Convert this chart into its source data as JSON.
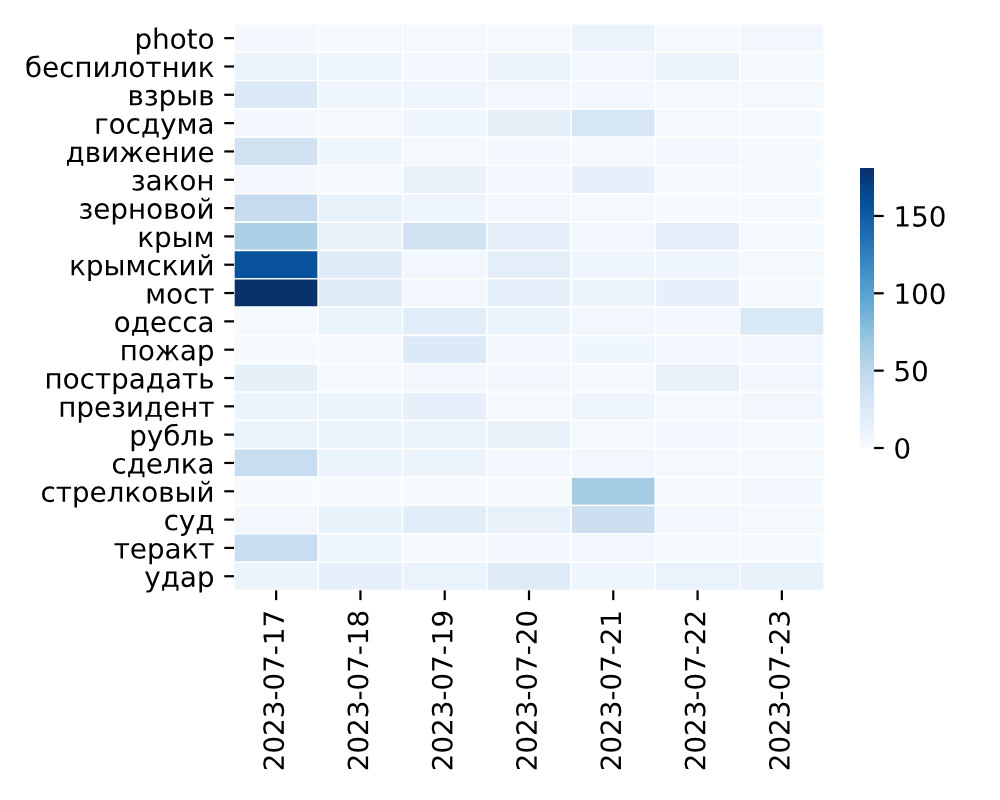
{
  "chart_data": {
    "type": "heatmap",
    "categories": [
      "2023-07-17",
      "2023-07-18",
      "2023-07-19",
      "2023-07-20",
      "2023-07-21",
      "2023-07-22",
      "2023-07-23"
    ],
    "y_categories": [
      "photo",
      "беспилотник",
      "взрыв",
      "госдума",
      "движение",
      "закон",
      "зерновой",
      "крым",
      "крымский",
      "мост",
      "одесса",
      "пожар",
      "пострадать",
      "президент",
      "рубль",
      "сделка",
      "стрелковый",
      "суд",
      "теракт",
      "удар"
    ],
    "cells": [
      [
        4,
        3,
        3,
        3,
        12,
        3,
        5
      ],
      [
        10,
        8,
        4,
        12,
        6,
        12,
        3
      ],
      [
        25,
        8,
        9,
        5,
        4,
        3,
        3
      ],
      [
        4,
        3,
        7,
        16,
        30,
        3,
        2
      ],
      [
        35,
        7,
        3,
        4,
        2,
        5,
        2
      ],
      [
        4,
        3,
        13,
        5,
        15,
        3,
        2
      ],
      [
        45,
        14,
        9,
        5,
        3,
        2,
        2
      ],
      [
        60,
        13,
        35,
        17,
        5,
        18,
        3
      ],
      [
        158,
        22,
        6,
        18,
        8,
        8,
        3
      ],
      [
        181,
        22,
        6,
        17,
        10,
        15,
        2
      ],
      [
        2,
        12,
        20,
        10,
        5,
        4,
        27
      ],
      [
        2,
        3,
        25,
        4,
        7,
        4,
        5
      ],
      [
        16,
        3,
        5,
        6,
        3,
        14,
        5
      ],
      [
        10,
        10,
        15,
        3,
        8,
        3,
        5
      ],
      [
        12,
        11,
        12,
        14,
        3,
        4,
        3
      ],
      [
        43,
        12,
        11,
        5,
        6,
        3,
        3
      ],
      [
        2,
        2,
        2,
        2,
        65,
        2,
        4
      ],
      [
        5,
        13,
        20,
        14,
        40,
        5,
        3
      ],
      [
        43,
        8,
        3,
        5,
        5,
        2,
        2
      ],
      [
        10,
        15,
        12,
        22,
        8,
        12,
        13
      ]
    ],
    "clim": [
      0,
      181
    ],
    "cticks": [
      0,
      50,
      100,
      150
    ]
  }
}
